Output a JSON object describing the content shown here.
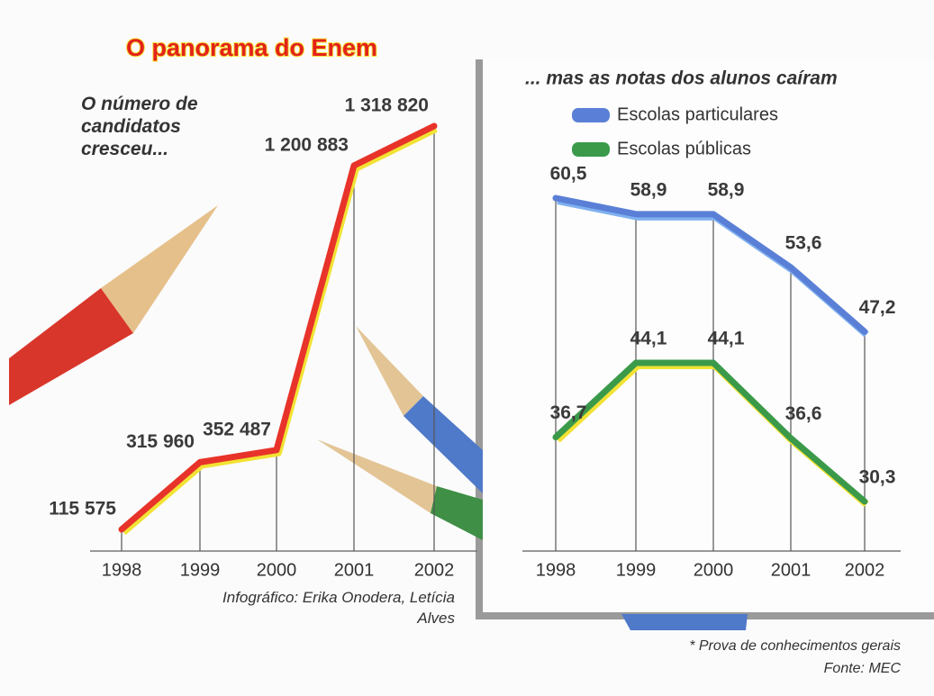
{
  "title": "O panorama do Enem",
  "credit": "Infográfico: Erika Onodera, Letícia Alves",
  "footnote": "* Prova de conhecimentos gerais",
  "source": "Fonte: MEC",
  "chart_data": [
    {
      "type": "line",
      "title": "O número de candidatos cresceu...",
      "categories": [
        "1998",
        "1999",
        "2000",
        "2001",
        "2002"
      ],
      "values": [
        115575,
        315960,
        352487,
        1200883,
        1318820
      ],
      "value_labels": [
        "115 575",
        "315 960",
        "352 487",
        "1 200 883",
        "1 318 820"
      ],
      "color": "#e8332a"
    },
    {
      "type": "line",
      "title": "... mas as notas dos alunos caíram",
      "categories": [
        "1998",
        "1999",
        "2000",
        "2001",
        "2002"
      ],
      "series": [
        {
          "name": "Escolas particulares",
          "color": "#5a7fd6",
          "values": [
            60.5,
            58.9,
            58.9,
            53.6,
            47.2
          ],
          "value_labels": [
            "60,5",
            "58,9",
            "58,9",
            "53,6",
            "47,2"
          ]
        },
        {
          "name": "Escolas públicas",
          "color": "#3a9a4a",
          "values": [
            36.7,
            44.1,
            44.1,
            36.6,
            30.3
          ],
          "value_labels": [
            "36,7",
            "44,1",
            "44,1",
            "36,6",
            "30,3"
          ]
        }
      ]
    }
  ]
}
